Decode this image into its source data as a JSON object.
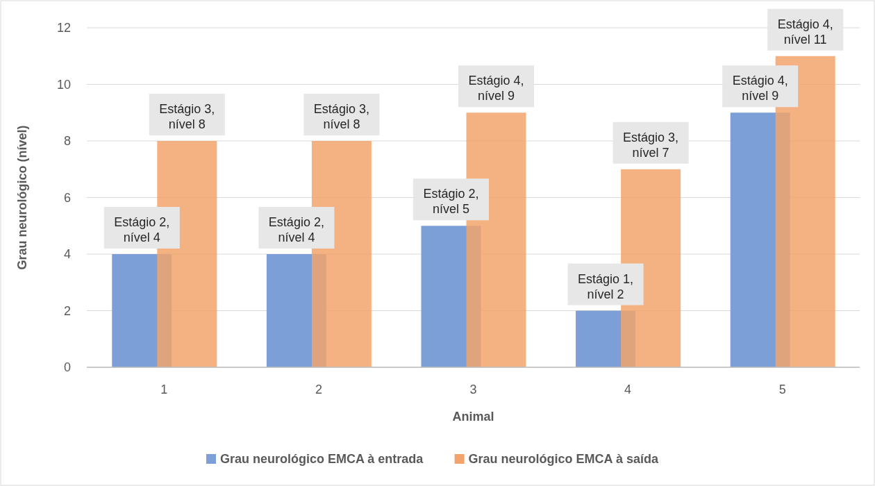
{
  "chart_data": {
    "type": "bar",
    "xlabel": "Animal",
    "ylabel": "Grau neurológico (nível)",
    "categories": [
      "1",
      "2",
      "3",
      "4",
      "5"
    ],
    "series": [
      {
        "name": "Grau neurológico EMCA à entrada",
        "color": "#7b9fd6",
        "values": [
          4,
          4,
          5,
          2,
          9
        ],
        "value_labels": [
          "Estágio 2, nível 4",
          "Estágio 2, nível 4",
          "Estágio 2, nível 5",
          "Estágio 1, nível 2",
          "Estágio 4, nível 9"
        ]
      },
      {
        "name": "Grau neurológico EMCA à saída",
        "color": "#f2a46c",
        "values": [
          8,
          8,
          9,
          7,
          11
        ],
        "value_labels": [
          "Estágio 3, nível 8",
          "Estágio 3, nível 8",
          "Estágio 4, nível 9",
          "Estágio 3, nível 7",
          "Estágio 4, nível 11"
        ]
      }
    ],
    "ylim": [
      0,
      12
    ],
    "yticks": [
      0,
      2,
      4,
      6,
      8,
      10,
      12
    ],
    "grid": "y",
    "legend": "bottom"
  }
}
